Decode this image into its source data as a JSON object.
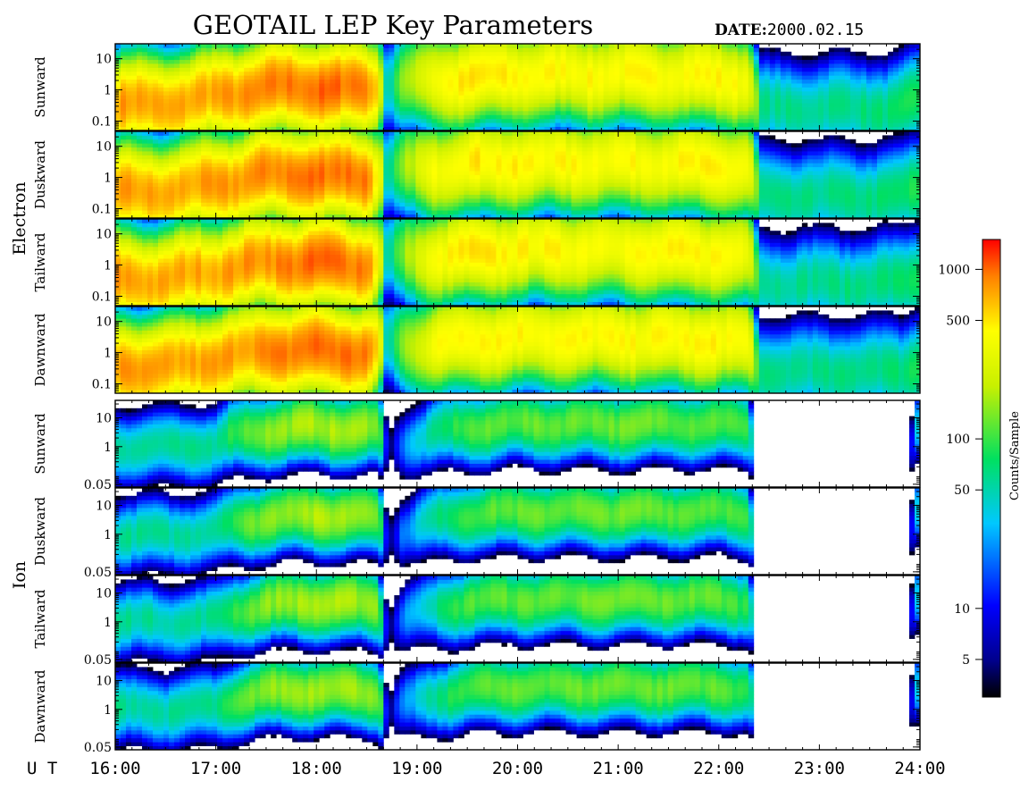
{
  "title": "GEOTAIL LEP Key Parameters",
  "date_label": "DATE:",
  "date_value": "2000.02.15",
  "ut_label": "U T",
  "colorbar": {
    "label": "Counts/Sample",
    "scale": "log",
    "range": [
      3,
      1500
    ],
    "ticks": [
      {
        "value": 1000,
        "label": "1000"
      },
      {
        "value": 500,
        "label": "500"
      },
      {
        "value": 100,
        "label": "100"
      },
      {
        "value": 50,
        "label": "50"
      },
      {
        "value": 10,
        "label": "10"
      },
      {
        "value": 5,
        "label": "5"
      }
    ]
  },
  "chart_data": {
    "type": "heatmap",
    "x_axis": {
      "range": [
        16,
        24
      ],
      "ticks": [
        {
          "value": 16,
          "label": "16:00"
        },
        {
          "value": 17,
          "label": "17:00"
        },
        {
          "value": 18,
          "label": "18:00"
        },
        {
          "value": 19,
          "label": "19:00"
        },
        {
          "value": 20,
          "label": "20:00"
        },
        {
          "value": 21,
          "label": "21:00"
        },
        {
          "value": 22,
          "label": "22:00"
        },
        {
          "value": 23,
          "label": "23:00"
        },
        {
          "value": 24,
          "label": "24:00"
        }
      ]
    },
    "groups": [
      {
        "name": "Electron",
        "panels": [
          "Sunward",
          "Duskward",
          "Tailward",
          "Dawnward"
        ]
      },
      {
        "name": "Ion",
        "panels": [
          "Sunward",
          "Duskward",
          "Tailward",
          "Dawnward"
        ]
      }
    ],
    "electron_y": {
      "scale": "log",
      "range": [
        0.05,
        30
      ],
      "ticks": [
        {
          "value": 10,
          "label": "10"
        },
        {
          "value": 1,
          "label": "1"
        },
        {
          "value": 0.1,
          "label": "0.1"
        }
      ]
    },
    "ion_y": {
      "scale": "log",
      "range": [
        0.04,
        40
      ],
      "ticks": [
        {
          "value": 10,
          "label": "10"
        },
        {
          "value": 1,
          "label": "1"
        },
        {
          "value": 0.05,
          "label": "0.05"
        }
      ]
    },
    "electron_profile": {
      "t": [
        16.0,
        16.5,
        17.0,
        17.5,
        18.0,
        18.5,
        18.7,
        19.2,
        19.5,
        20.0,
        21.0,
        22.0,
        22.3,
        22.4,
        23.0,
        23.8,
        24.0
      ],
      "peak": [
        800,
        700,
        750,
        850,
        1000,
        950,
        20,
        400,
        500,
        450,
        420,
        450,
        380,
        60,
        60,
        70,
        90
      ],
      "center_log": [
        -0.5,
        -0.45,
        -0.2,
        0.1,
        0.1,
        0.0,
        0.3,
        0.3,
        0.4,
        0.5,
        0.5,
        0.4,
        0.3,
        -0.6,
        -0.6,
        -0.6,
        -0.3
      ]
    },
    "ion_profile": {
      "t": [
        16.0,
        16.5,
        17.0,
        17.2,
        17.5,
        18.0,
        18.6,
        18.7,
        19.2,
        19.5,
        20.0,
        21.0,
        22.0,
        22.3,
        22.35,
        23.9,
        24.0
      ],
      "peak": [
        60,
        55,
        60,
        100,
        150,
        180,
        160,
        0,
        60,
        110,
        120,
        130,
        120,
        90,
        0,
        0,
        50
      ],
      "center_log": [
        0.0,
        0.0,
        0.1,
        0.4,
        0.6,
        0.7,
        0.6,
        0.0,
        0.5,
        0.7,
        0.8,
        0.8,
        0.8,
        0.7,
        0.0,
        0.0,
        1.0
      ]
    }
  }
}
